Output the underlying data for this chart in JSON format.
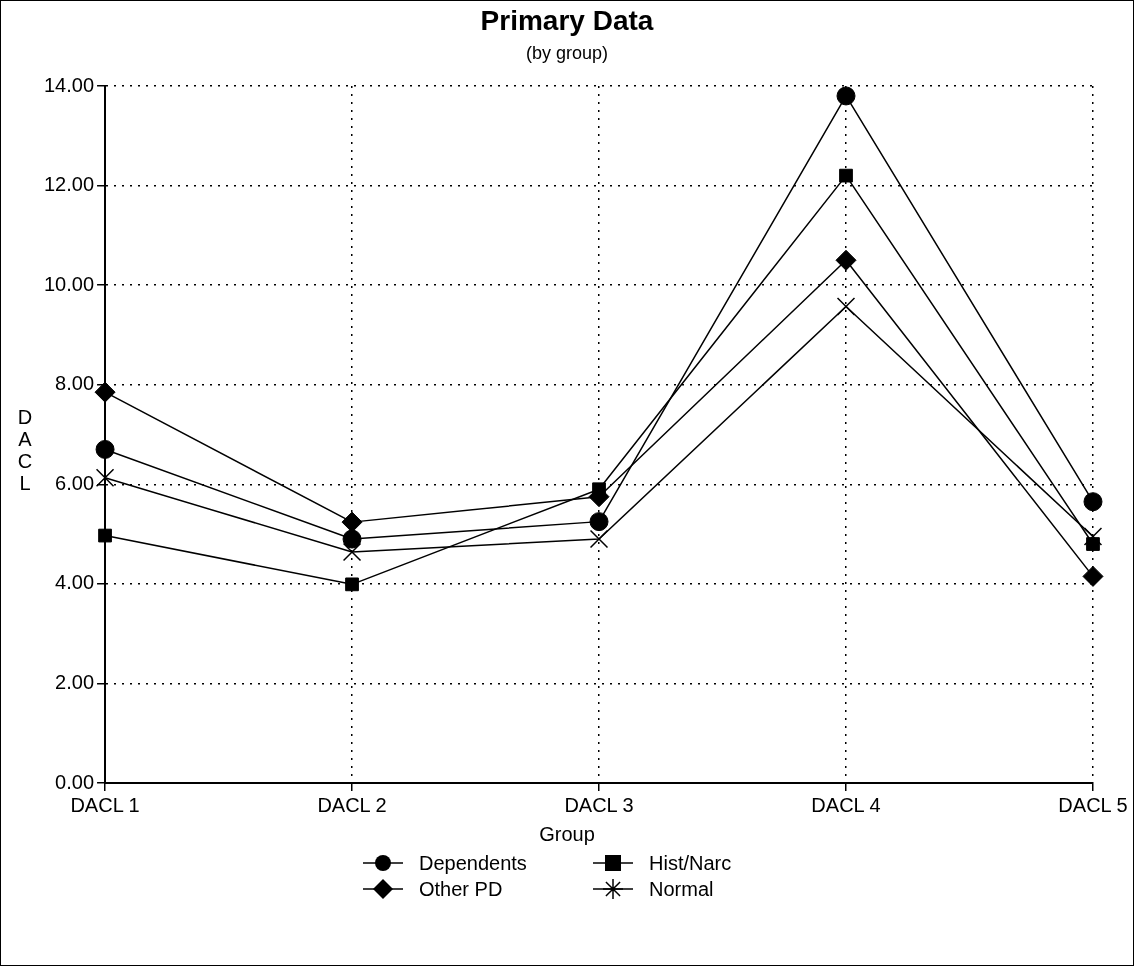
{
  "chart_data": {
    "type": "line",
    "title": "Primary Data",
    "subtitle": "(by group)",
    "xlabel": "Group",
    "ylabel": "DACL",
    "categories": [
      "DACL 1",
      "DACL 2",
      "DACL 3",
      "DACL 4",
      "DACL 5"
    ],
    "series": [
      {
        "name": "Dependents",
        "color": "#000000",
        "marker": "circle",
        "values": [
          6.7,
          4.9,
          5.25,
          13.8,
          5.65
        ]
      },
      {
        "name": "Hist/Narc",
        "color": "#000000",
        "marker": "square",
        "values": [
          4.97,
          3.99,
          5.9,
          12.2,
          4.8
        ]
      },
      {
        "name": "Other PD",
        "color": "#000000",
        "marker": "diamond",
        "values": [
          7.85,
          5.24,
          5.75,
          10.5,
          4.15
        ]
      },
      {
        "name": "Normal",
        "color": "#000000",
        "marker": "cross",
        "values": [
          6.13,
          4.64,
          4.9,
          9.57,
          4.95
        ]
      }
    ],
    "ylim": [
      0,
      14
    ],
    "yticks": [
      {
        "value": 0,
        "label": "0.00"
      },
      {
        "value": 2,
        "label": "2.00"
      },
      {
        "value": 4,
        "label": "4.00"
      },
      {
        "value": 6,
        "label": "6.00"
      },
      {
        "value": 8,
        "label": "8.00"
      },
      {
        "value": 10,
        "label": "10.00"
      },
      {
        "value": 12,
        "label": "12.00"
      },
      {
        "value": 14,
        "label": "14.00"
      }
    ],
    "grid": true,
    "legend": "bottom",
    "line_style": "solid"
  }
}
